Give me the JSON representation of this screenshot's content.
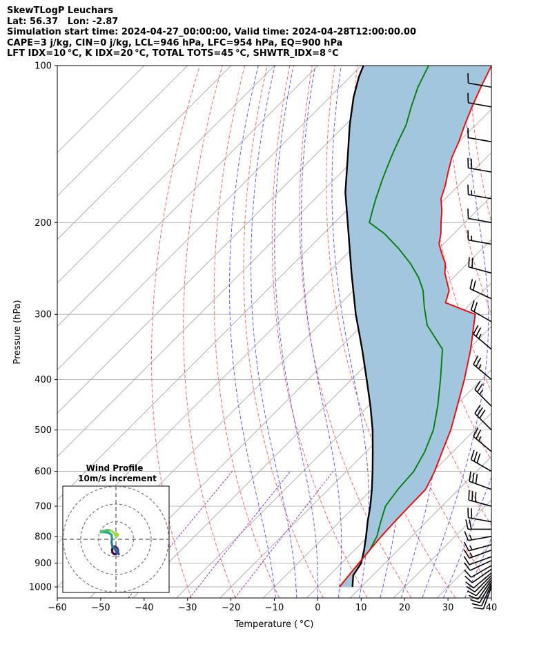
{
  "header": {
    "lines": [
      "SkewTLogP Leuchars",
      "Lat: 56.37   Lon: -2.87",
      "Simulation start time: 2024-04-27_00:00:00, Valid time: 2024-04-28T12:00:00.00",
      "CAPE=3 j/kg, CIN=0 j/kg, LCL=946 hPa, LFC=954 hPa, EQ=900 hPa",
      "LFT IDX=10 °C, K IDX=20 °C, TOTAL TOTS=45 °C, SHWTR_IDX=8 °C"
    ]
  },
  "chart_data": [
    {
      "type": "line",
      "kind": "skew-t log-p",
      "xlabel": "Temperature ($^\\circ$C)",
      "ylabel": "Pressure (hPa)",
      "xlabel_text": "Temperature ( °C)",
      "xlim": [
        -60,
        40
      ],
      "ylim": [
        1050,
        100
      ],
      "yscale": "log",
      "x_ticks": [
        -60,
        -50,
        -40,
        -30,
        -20,
        -10,
        0,
        10,
        20,
        30,
        40
      ],
      "y_ticks": [
        1000,
        900,
        800,
        700,
        600,
        500,
        400,
        300,
        200,
        100
      ],
      "grid": true,
      "colors": {
        "temperature": "#ff0000",
        "dewpoint": "#008000",
        "parcel": "#000000",
        "cape_fill": "#a3c6df",
        "dry_adiabats": "#ff6464",
        "moist_adiabats": "#5a5aff",
        "mixing_ratio": "#9b30c8",
        "isotherms": "#aaaaaa"
      },
      "series": [
        {
          "role": "temperature",
          "points": [
            [
              5.0,
              1000
            ],
            [
              4.5,
              950
            ],
            [
              4.0,
              900
            ],
            [
              3.5,
              850
            ],
            [
              3.0,
              800
            ],
            [
              2.7,
              750
            ],
            [
              2.5,
              700
            ],
            [
              2.4,
              650
            ],
            [
              0.3,
              600
            ],
            [
              -2.5,
              550
            ],
            [
              -5.5,
              500
            ],
            [
              -9.5,
              450
            ],
            [
              -14,
              400
            ],
            [
              -19.5,
              350
            ],
            [
              -26.5,
              300
            ],
            [
              -36,
              285
            ],
            [
              -38,
              270
            ],
            [
              -43,
              250
            ],
            [
              -45,
              240
            ],
            [
              -48,
              230
            ],
            [
              -51,
              220
            ],
            [
              -53,
              210
            ],
            [
              -55.5,
              200
            ],
            [
              -58,
              190
            ],
            [
              -61,
              180
            ],
            [
              -63,
              170
            ],
            [
              -65.5,
              160
            ],
            [
              -68,
              150
            ],
            [
              -70,
              140
            ],
            [
              -72.5,
              130
            ],
            [
              -75,
              120
            ],
            [
              -77.5,
              110
            ],
            [
              -80,
              100
            ]
          ]
        },
        {
          "role": "dewpoint",
          "points": [
            [
              5.0,
              1000
            ],
            [
              4.5,
              950
            ],
            [
              4.0,
              900
            ],
            [
              3.5,
              850
            ],
            [
              2.0,
              800
            ],
            [
              -0.5,
              750
            ],
            [
              -3.0,
              700
            ],
            [
              -4.0,
              650
            ],
            [
              -4.5,
              600
            ],
            [
              -6.5,
              550
            ],
            [
              -9.5,
              500
            ],
            [
              -14,
              450
            ],
            [
              -19.5,
              400
            ],
            [
              -26,
              350
            ],
            [
              -35,
              315
            ],
            [
              -40,
              290
            ],
            [
              -44,
              270
            ],
            [
              -48,
              255
            ],
            [
              -53,
              240
            ],
            [
              -59,
              225
            ],
            [
              -66,
              210
            ],
            [
              -72,
              200
            ],
            [
              -74,
              190
            ],
            [
              -76,
              180
            ],
            [
              -79,
              165
            ],
            [
              -82,
              150
            ],
            [
              -84,
              140
            ],
            [
              -86,
              130
            ],
            [
              -89,
              120
            ],
            [
              -92,
              110
            ],
            [
              -94.5,
              100
            ]
          ]
        },
        {
          "role": "parcel",
          "points": [
            [
              8.0,
              1000
            ],
            [
              5.5,
              950
            ],
            [
              4.5,
              900
            ],
            [
              2.2,
              850
            ],
            [
              -0.5,
              800
            ],
            [
              -3.5,
              750
            ],
            [
              -6.5,
              700
            ],
            [
              -10,
              650
            ],
            [
              -14,
              600
            ],
            [
              -18.5,
              550
            ],
            [
              -23.5,
              500
            ],
            [
              -29.5,
              450
            ],
            [
              -36.5,
              400
            ],
            [
              -44.5,
              350
            ],
            [
              -54,
              300
            ],
            [
              -64.5,
              250
            ],
            [
              -77,
              200
            ],
            [
              -84.5,
              175
            ],
            [
              -92,
              150
            ],
            [
              -99,
              130
            ],
            [
              -104.5,
              115
            ],
            [
              -108,
              105
            ],
            [
              -109.5,
              100
            ]
          ]
        }
      ],
      "wind_barbs": {
        "side": "right",
        "pressures": [
          1000,
          990,
          980,
          970,
          960,
          950,
          940,
          925,
          910,
          890,
          875,
          850,
          830,
          800,
          775,
          750,
          700,
          650,
          600,
          550,
          500,
          450,
          400,
          350,
          310,
          280,
          250,
          220,
          200,
          180,
          160,
          140,
          120,
          110
        ],
        "speed_kt": [
          8,
          8,
          8,
          10,
          10,
          10,
          10,
          12,
          12,
          12,
          12,
          14,
          14,
          15,
          18,
          22,
          28,
          30,
          28,
          25,
          30,
          25,
          25,
          25,
          22,
          20,
          18,
          15,
          12,
          15,
          18,
          12,
          12,
          10
        ],
        "direction_deg": [
          200,
          205,
          210,
          215,
          220,
          225,
          230,
          235,
          240,
          245,
          250,
          250,
          255,
          260,
          270,
          280,
          285,
          290,
          300,
          310,
          315,
          315,
          310,
          310,
          300,
          295,
          285,
          280,
          280,
          280,
          280,
          280,
          280,
          280
        ]
      }
    },
    {
      "type": "hodograph",
      "title": "Wind Profile\n10m/s increment",
      "title_lines": [
        "Wind Profile",
        "10m/s increment"
      ],
      "ring_step_ms": 10,
      "rings": [
        10,
        20,
        30
      ],
      "points_uv": [
        [
          1.0,
          -8.0
        ],
        [
          -1.0,
          -8.5
        ],
        [
          -2.0,
          -7.5
        ],
        [
          -2.2,
          -6.0
        ],
        [
          -1.8,
          -4.5
        ],
        [
          -0.8,
          -4.0
        ],
        [
          0.2,
          -4.5
        ],
        [
          0.7,
          -5.0
        ],
        [
          1.2,
          -6.0
        ],
        [
          1.3,
          -7.5
        ],
        [
          1.6,
          -8.5
        ],
        [
          0.6,
          -7.5
        ],
        [
          -0.8,
          -5.5
        ],
        [
          -2.0,
          -4.0
        ],
        [
          -2.5,
          -2.0
        ],
        [
          -2.3,
          0.5
        ],
        [
          -2.5,
          2.5
        ],
        [
          -3.8,
          3.5
        ],
        [
          -5.5,
          4.0
        ],
        [
          -7.5,
          4.0
        ],
        [
          -8.5,
          4.0
        ],
        [
          -7.0,
          4.8
        ],
        [
          -5.0,
          5.2
        ],
        [
          -3.0,
          5.0
        ],
        [
          -1.5,
          4.0
        ],
        [
          0.0,
          3.0
        ],
        [
          0.8,
          2.5
        ]
      ],
      "endpoint_marker_uv": [
        0.3,
        2.5
      ],
      "colormap": "viridis"
    }
  ]
}
